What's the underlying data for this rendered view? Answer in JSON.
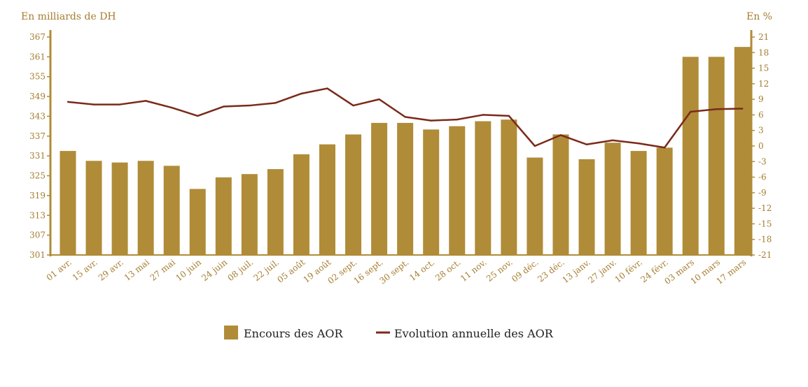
{
  "chart_data": {
    "type": "bar",
    "left_unit_label": "En milliards de DH",
    "right_unit_label": "En %",
    "categories": [
      "01 avr.",
      "15 avr.",
      "29 avr.",
      "13 mai",
      "27 mai",
      "10 juin",
      "24 juin",
      "08 juil.",
      "22 juil.",
      "05 août",
      "19 août",
      "02 sept.",
      "16 sept.",
      "30 sept.",
      "14 oct.",
      "28 oct.",
      "11 nov.",
      "25 nov.",
      "09 déc.",
      "23 déc.",
      "13 janv.",
      "27 janv.",
      "10 févr.",
      "24 févr.",
      "03 mars",
      "10 mars",
      "17 mars"
    ],
    "y_left": {
      "min": 301,
      "max": 367,
      "ticks": [
        301,
        307,
        313,
        319,
        325,
        331,
        337,
        343,
        349,
        355,
        361,
        367
      ]
    },
    "y_right": {
      "min": -21,
      "max": 21,
      "ticks": [
        -21,
        -18,
        -15,
        -12,
        -9,
        -6,
        -3,
        0,
        3,
        6,
        9,
        12,
        15,
        18,
        21
      ]
    },
    "series": [
      {
        "name": "Encours des AOR",
        "type": "bar",
        "axis": "left",
        "values": [
          332.5,
          329.5,
          329.0,
          329.5,
          328.0,
          321.0,
          324.5,
          325.5,
          327.0,
          331.5,
          334.5,
          337.5,
          341.0,
          341.0,
          339.0,
          340.0,
          341.5,
          342.0,
          330.5,
          337.5,
          330.0,
          335.0,
          332.5,
          333.5,
          361.0,
          361.0,
          364.0
        ]
      },
      {
        "name": "Evolution annuelle des AOR",
        "type": "line",
        "axis": "right",
        "values": [
          8.5,
          8.0,
          8.0,
          8.7,
          7.4,
          5.8,
          7.6,
          7.8,
          8.3,
          10.1,
          11.1,
          7.8,
          9.0,
          5.6,
          4.9,
          5.1,
          6.0,
          5.8,
          0.0,
          2.1,
          0.3,
          1.1,
          0.5,
          -0.3,
          6.6,
          7.1,
          7.2
        ]
      }
    ],
    "grid": false,
    "legend_position": "bottom",
    "colors": {
      "bar": "#b08c38",
      "line": "#7a2a1a",
      "axis": "#b08c38",
      "tick_text": "#a57d2f"
    }
  }
}
